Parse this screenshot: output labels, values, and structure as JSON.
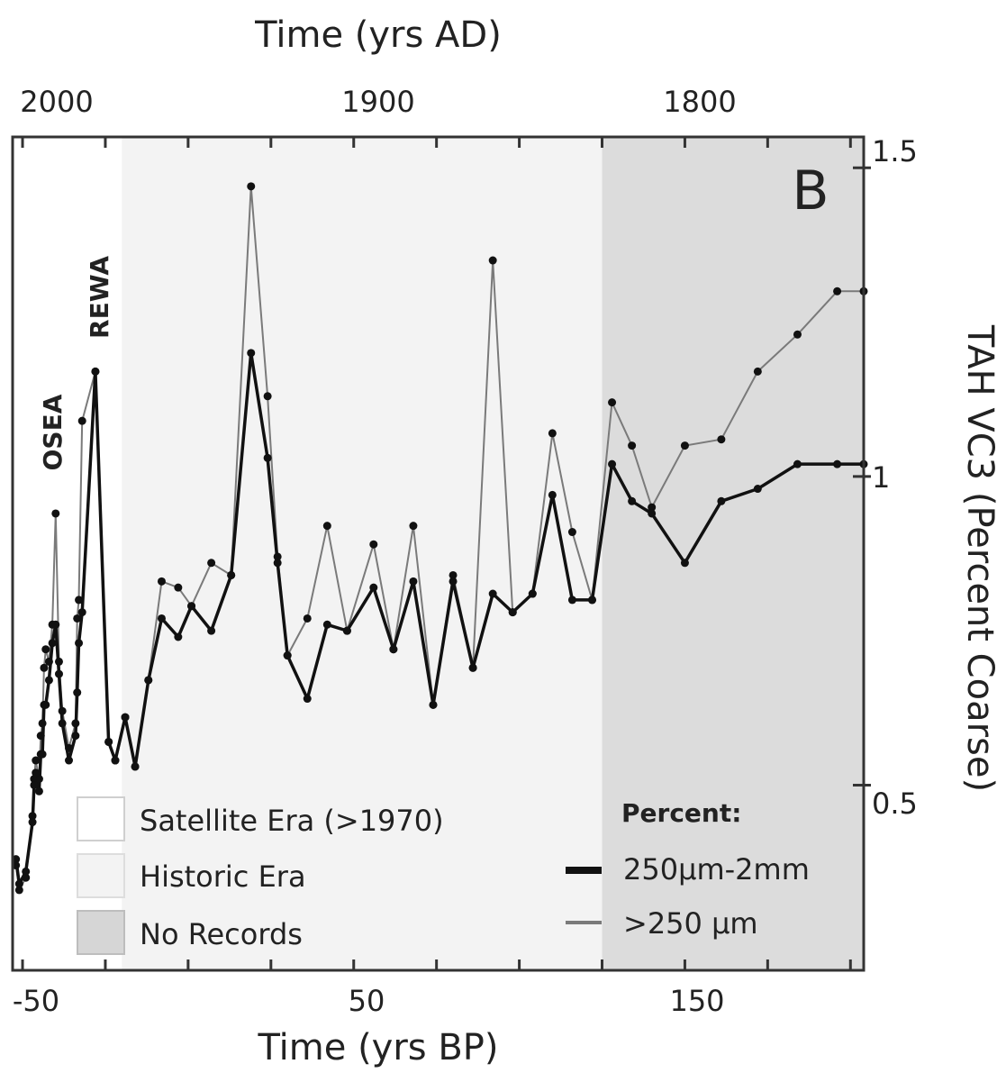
{
  "chart_data": {
    "type": "line",
    "panel_label": "B",
    "top_axis": {
      "label": "Time (yrs AD)",
      "ticks": [
        2000,
        1900,
        1800
      ]
    },
    "bottom_axis": {
      "label": "Time (yrs BP)",
      "ticks": [
        -50,
        50,
        150
      ],
      "xlim": [
        -53,
        204
      ]
    },
    "right_axis": {
      "label": "TAH VC3 (Percent Coarse)",
      "ticks": [
        0.5,
        1.0,
        1.5
      ],
      "ylim": [
        0.2,
        1.55
      ]
    },
    "regions": [
      {
        "name": "Satellite Era (>1970)",
        "from": -53,
        "to": -20,
        "color": "#ffffff"
      },
      {
        "name": "Historic Era",
        "from": -20,
        "to": 125,
        "color": "#f3f3f3"
      },
      {
        "name": "No Records",
        "from": 125,
        "to": 204,
        "color": "#dcdcdc"
      }
    ],
    "events": [
      {
        "label": "OSEA",
        "x": -45
      },
      {
        "label": "REWA",
        "x": -31
      }
    ],
    "legend": {
      "heading": "Percent:",
      "regions_title": ""
    },
    "series": [
      {
        "name": "250µm-2mm",
        "color": "#111111",
        "x": [
          -52,
          -51,
          -49,
          -47,
          -46.5,
          -46,
          -45,
          -44.5,
          -44,
          -43.5,
          -43,
          -42,
          -41,
          -40,
          -39,
          -38,
          -36,
          -34,
          -33.5,
          -33,
          -32,
          -28,
          -24,
          -22,
          -19,
          -16,
          -12,
          -8,
          -3,
          1,
          7,
          13,
          19,
          24,
          27,
          30,
          36,
          42,
          48,
          56,
          62,
          68,
          74,
          80,
          86,
          92,
          98,
          104,
          110,
          116,
          122,
          128,
          134,
          140,
          150,
          161,
          172,
          184,
          196,
          204
        ],
        "y": [
          0.38,
          0.34,
          0.36,
          0.44,
          0.5,
          0.52,
          0.49,
          0.55,
          0.55,
          0.63,
          0.63,
          0.67,
          0.73,
          0.76,
          0.68,
          0.6,
          0.54,
          0.58,
          0.65,
          0.73,
          0.78,
          1.17,
          0.57,
          0.54,
          0.61,
          0.53,
          0.67,
          0.77,
          0.74,
          0.79,
          0.75,
          0.84,
          1.2,
          1.03,
          0.86,
          0.71,
          0.64,
          0.76,
          0.75,
          0.82,
          0.72,
          0.83,
          0.63,
          0.83,
          0.69,
          0.81,
          0.78,
          0.81,
          0.97,
          0.8,
          0.8,
          1.02,
          0.96,
          0.94,
          0.86,
          0.96,
          0.98,
          1.02,
          1.02,
          1.02
        ]
      },
      {
        "name": ">250 µm",
        "color": "#7a7a7a",
        "x": [
          -52,
          -51,
          -49,
          -47,
          -46.5,
          -46,
          -45,
          -44.5,
          -44,
          -43.5,
          -43,
          -42,
          -41,
          -40,
          -39,
          -38,
          -36,
          -34,
          -33.5,
          -33,
          -32,
          -28,
          -24,
          -22,
          -19,
          -16,
          -12,
          -8,
          -3,
          1,
          7,
          13,
          19,
          24,
          27,
          30,
          36,
          42,
          48,
          56,
          62,
          68,
          74,
          80,
          86,
          92,
          98,
          104,
          110,
          116,
          122,
          128,
          134,
          140,
          150,
          161,
          172,
          184,
          196,
          204
        ],
        "y": [
          0.37,
          0.33,
          0.35,
          0.45,
          0.51,
          0.54,
          0.51,
          0.58,
          0.6,
          0.69,
          0.72,
          0.7,
          0.76,
          0.94,
          0.7,
          0.62,
          0.56,
          0.6,
          0.77,
          0.8,
          1.09,
          1.17,
          0.57,
          0.54,
          0.61,
          0.53,
          0.67,
          0.83,
          0.82,
          0.79,
          0.86,
          0.84,
          1.47,
          1.13,
          0.87,
          0.71,
          0.77,
          0.92,
          0.75,
          0.89,
          0.72,
          0.92,
          0.63,
          0.84,
          0.69,
          1.35,
          0.78,
          0.81,
          1.07,
          0.91,
          0.8,
          1.12,
          1.05,
          0.95,
          1.05,
          1.06,
          1.17,
          1.23,
          1.3,
          1.3
        ]
      }
    ]
  }
}
